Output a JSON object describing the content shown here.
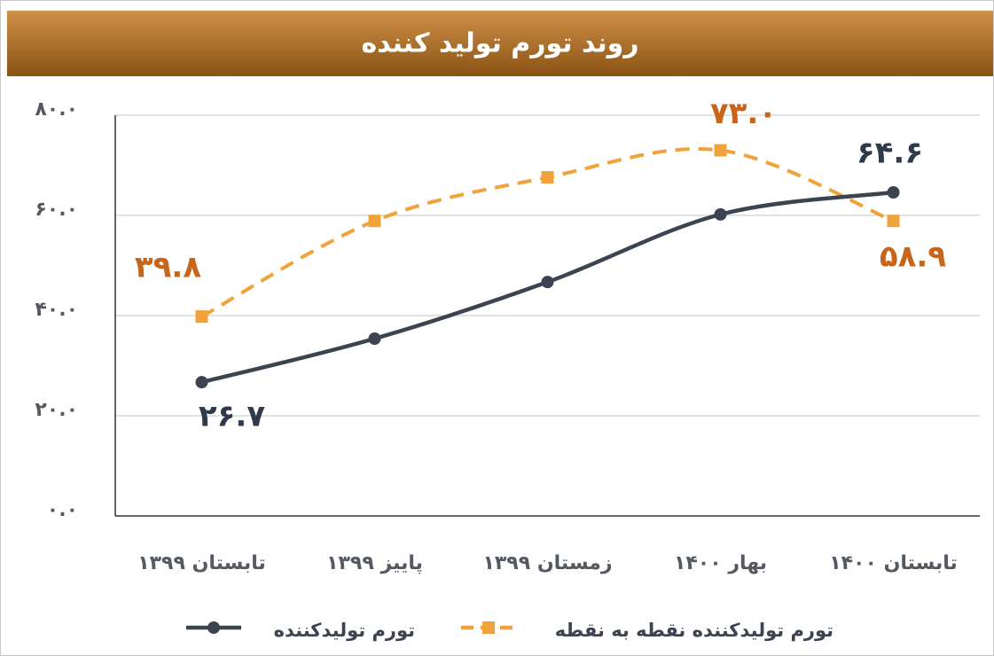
{
  "chart_data": {
    "type": "line",
    "title": "روند تورم تولید کننده",
    "categories": [
      "تابستان ۱۳۹۹",
      "پاییز ۱۳۹۹",
      "زمستان ۱۳۹۹",
      "بهار ۱۴۰۰",
      "تابستان ۱۴۰۰"
    ],
    "series": [
      {
        "name": "تورم تولیدکننده",
        "color": "#3c4452",
        "label_color": "#2f3a4a",
        "dashed": false,
        "marker": "circle",
        "values": [
          26.7,
          35.4,
          46.7,
          60.2,
          64.6
        ],
        "value_labels": [
          "۲۶.۷",
          null,
          null,
          null,
          "۶۴.۶"
        ]
      },
      {
        "name": "تورم تولیدکننده نقطه به نقطه",
        "color": "#f0a33a",
        "label_color": "#c8651b",
        "dashed": true,
        "marker": "square",
        "values": [
          39.8,
          58.9,
          67.6,
          73.0,
          58.9
        ],
        "value_labels": [
          "۳۹.۸",
          null,
          null,
          "۷۳.۰",
          "۵۸.۹"
        ]
      }
    ],
    "ylim": [
      0,
      80
    ],
    "yticks": [
      {
        "value": 0,
        "label": "۰.۰"
      },
      {
        "value": 20,
        "label": "۲۰.۰"
      },
      {
        "value": 40,
        "label": "۴۰.۰"
      },
      {
        "value": 60,
        "label": "۶۰.۰"
      },
      {
        "value": 80,
        "label": "۸۰.۰"
      }
    ],
    "grid": true,
    "smooth": true,
    "legend": "bottom"
  }
}
